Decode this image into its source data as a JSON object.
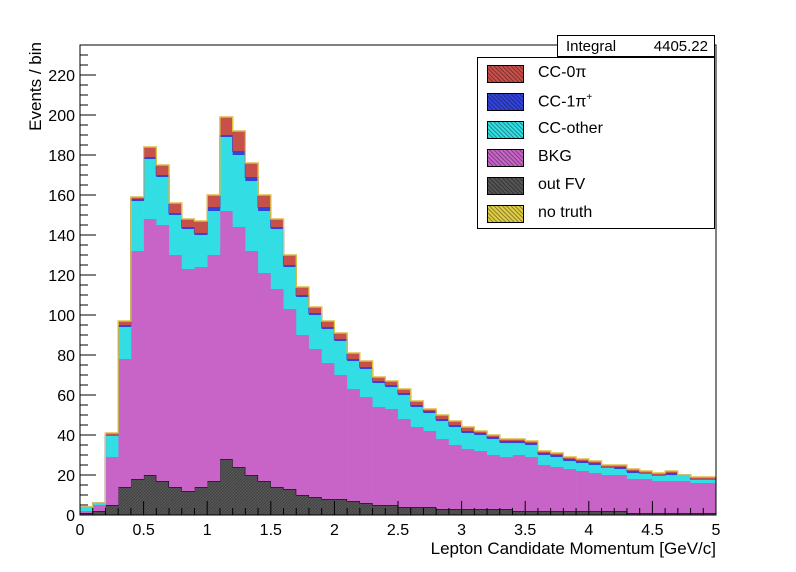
{
  "chart_data": {
    "type": "bar",
    "subtype": "stacked-histogram",
    "title": "",
    "xlabel": "Lepton Candidate Momentum [GeV/c]",
    "ylabel": "Events / bin",
    "xlim": [
      0,
      5
    ],
    "ylim": [
      0,
      235
    ],
    "x_ticks": [
      "0",
      "0.5",
      "1",
      "1.5",
      "2",
      "2.5",
      "3",
      "3.5",
      "4",
      "4.5",
      "5"
    ],
    "y_ticks": [
      "0",
      "20",
      "40",
      "60",
      "80",
      "100",
      "120",
      "140",
      "160",
      "180",
      "200",
      "220"
    ],
    "grid": false,
    "legend_position": "top-right",
    "bin_width": 0.1,
    "bin_lows": [
      0.0,
      0.1,
      0.2,
      0.3,
      0.4,
      0.5,
      0.6,
      0.7,
      0.8,
      0.9,
      1.0,
      1.1,
      1.2,
      1.3,
      1.4,
      1.5,
      1.6,
      1.7,
      1.8,
      1.9,
      2.0,
      2.1,
      2.2,
      2.3,
      2.4,
      2.5,
      2.6,
      2.7,
      2.8,
      2.9,
      3.0,
      3.1,
      3.2,
      3.3,
      3.4,
      3.5,
      3.6,
      3.7,
      3.8,
      3.9,
      4.0,
      4.1,
      4.2,
      4.3,
      4.4,
      4.5,
      4.6,
      4.7,
      4.8,
      4.9
    ],
    "series": [
      {
        "name": "out FV",
        "color": "#555555",
        "values": [
          1,
          2,
          5,
          14,
          18,
          20,
          17,
          14,
          12,
          14,
          17,
          28,
          24,
          20,
          17,
          14,
          13,
          10,
          9,
          8,
          8,
          7,
          6,
          5,
          5,
          4,
          4,
          4,
          3,
          3,
          3,
          3,
          3,
          3,
          2,
          2,
          2,
          2,
          2,
          2,
          2,
          2,
          2,
          1,
          1,
          1,
          1,
          1,
          1,
          1
        ]
      },
      {
        "name": "BKG",
        "color": "#c864c8",
        "values": [
          1,
          3,
          24,
          64,
          114,
          128,
          128,
          116,
          111,
          110,
          113,
          124,
          120,
          112,
          104,
          99,
          90,
          80,
          74,
          68,
          62,
          56,
          53,
          49,
          48,
          44,
          40,
          38,
          35,
          32,
          30,
          29,
          27,
          26,
          28,
          27,
          23,
          22,
          21,
          20,
          19,
          18,
          18,
          17,
          17,
          16,
          16,
          16,
          15,
          15
        ]
      },
      {
        "name": "CC-other",
        "color": "#33dde4",
        "values": [
          2,
          1,
          11,
          16,
          25,
          30,
          24,
          20,
          20,
          16,
          22,
          37,
          36,
          35,
          31,
          30,
          21,
          19,
          17,
          17,
          17,
          14,
          14,
          12,
          11,
          12,
          10,
          9,
          9,
          9,
          8,
          8,
          8,
          7,
          6,
          6,
          5,
          5,
          4,
          4,
          4,
          4,
          3,
          3,
          3,
          3,
          3,
          3,
          2,
          2
        ]
      },
      {
        "name": "CC-1π⁺",
        "color": "#3344dd",
        "values": [
          0,
          0,
          0,
          1,
          1,
          1,
          1,
          1,
          1,
          1,
          2,
          1,
          2,
          2,
          2,
          1,
          1,
          1,
          1,
          1,
          1,
          1,
          1,
          1,
          1,
          1,
          1,
          1,
          1,
          1,
          1,
          1,
          1,
          1,
          1,
          1,
          1,
          1,
          1,
          1,
          1,
          0,
          1,
          1,
          0,
          0,
          1,
          0,
          0,
          0
        ]
      },
      {
        "name": "CC-0π",
        "color": "#c8504a",
        "values": [
          0,
          0,
          1,
          2,
          1,
          5,
          5,
          5,
          4,
          6,
          6,
          9,
          10,
          7,
          6,
          4,
          5,
          4,
          3,
          3,
          3,
          3,
          3,
          2,
          2,
          2,
          2,
          1,
          2,
          2,
          2,
          1,
          1,
          1,
          1,
          1,
          1,
          1,
          1,
          1,
          1,
          1,
          1,
          1,
          1,
          1,
          1,
          0,
          1,
          1
        ]
      },
      {
        "name": "no truth",
        "color": "#ddcc44",
        "values": [
          0,
          0,
          0,
          0,
          0,
          0,
          0,
          0,
          0,
          0,
          0,
          0,
          0,
          0,
          0,
          0,
          0,
          0,
          0,
          0,
          0,
          0,
          0,
          0,
          0,
          0,
          0,
          0,
          0,
          0,
          0,
          0,
          0,
          0,
          0,
          0,
          0,
          0,
          0,
          0,
          0,
          0,
          0,
          0,
          0,
          0,
          0,
          0,
          0,
          0
        ]
      }
    ]
  },
  "stats": {
    "label": "Integral",
    "value": "4405.22"
  },
  "legend": [
    {
      "label": "CC-0π",
      "color": "#c8504a"
    },
    {
      "label": "CC-1π",
      "sup": "+",
      "color": "#3344dd"
    },
    {
      "label": "CC-other",
      "color": "#33dde4"
    },
    {
      "label": "BKG",
      "color": "#c864c8"
    },
    {
      "label": "out FV",
      "color": "#555555"
    },
    {
      "label": "no truth",
      "color": "#ddcc44"
    }
  ]
}
